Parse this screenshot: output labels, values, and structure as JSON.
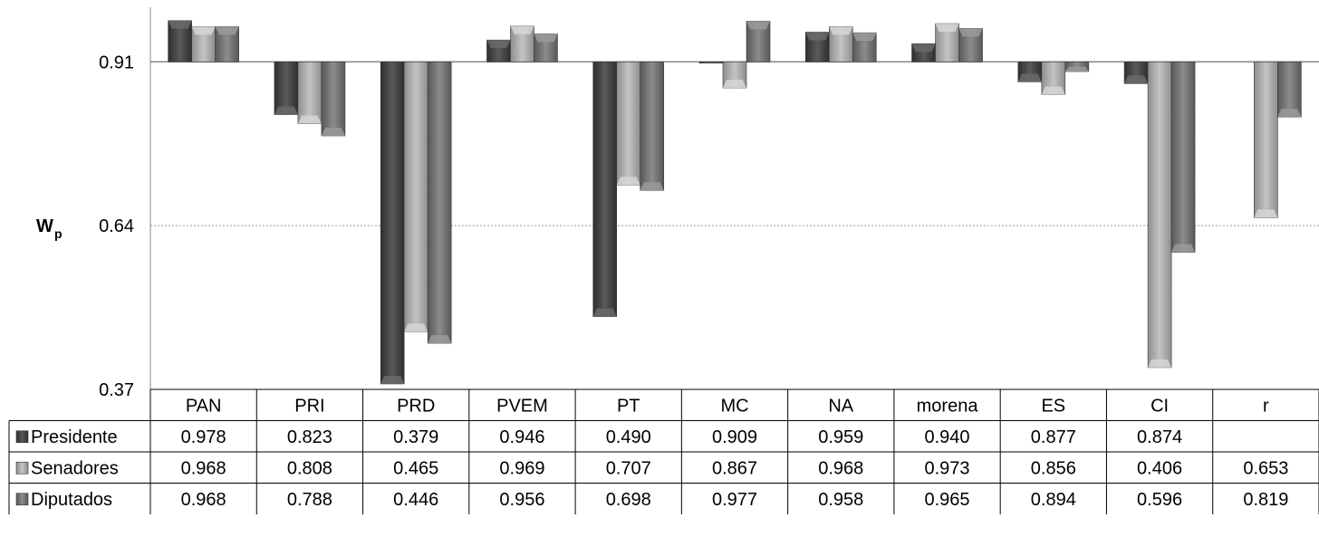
{
  "chart_data": {
    "type": "bar",
    "ylabel": "W",
    "ylabel_subscript": "p",
    "ylim": [
      0.37,
      1.0
    ],
    "baseline": 0.91,
    "yticks": [
      "0.91",
      "0.64",
      "0.37"
    ],
    "grid": true,
    "legend": "table-left",
    "categories": [
      "PAN",
      "PRI",
      "PRD",
      "PVEM",
      "PT",
      "MC",
      "NA",
      "morena",
      "ES",
      "CI",
      "r"
    ],
    "series": [
      {
        "name": "Presidente",
        "color": "#4a4a4a",
        "values": [
          0.978,
          0.823,
          0.379,
          0.946,
          0.49,
          0.909,
          0.959,
          0.94,
          0.877,
          0.874,
          null
        ],
        "labels": [
          "0.978",
          "0.823",
          "0.379",
          "0.946",
          "0.490",
          "0.909",
          "0.959",
          "0.940",
          "0.877",
          "0.874",
          ""
        ]
      },
      {
        "name": "Senadores",
        "color": "#a8a8a8",
        "values": [
          0.968,
          0.808,
          0.465,
          0.969,
          0.707,
          0.867,
          0.968,
          0.973,
          0.856,
          0.406,
          0.653
        ],
        "labels": [
          "0.968",
          "0.808",
          "0.465",
          "0.969",
          "0.707",
          "0.867",
          "0.968",
          "0.973",
          "0.856",
          "0.406",
          "0.653"
        ]
      },
      {
        "name": "Diputados",
        "color": "#777777",
        "values": [
          0.968,
          0.788,
          0.446,
          0.956,
          0.698,
          0.977,
          0.958,
          0.965,
          0.894,
          0.596,
          0.819
        ],
        "labels": [
          "0.968",
          "0.788",
          "0.446",
          "0.956",
          "0.698",
          "0.977",
          "0.958",
          "0.965",
          "0.894",
          "0.596",
          "0.819"
        ]
      }
    ]
  }
}
